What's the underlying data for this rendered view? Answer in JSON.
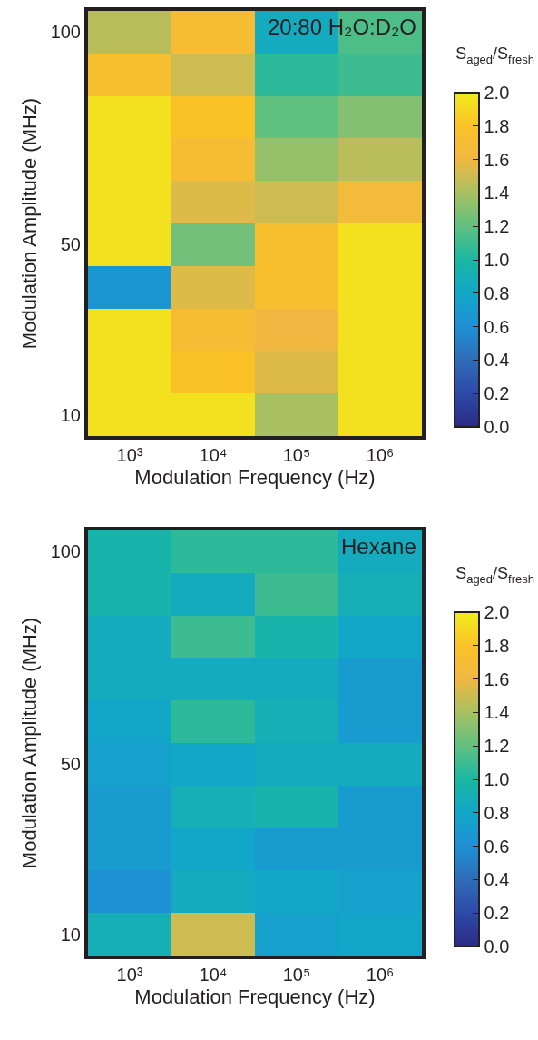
{
  "chart_data": [
    {
      "type": "heatmap",
      "title": "20:80 H₂O:D₂O",
      "xlabel": "Modulation Frequency (Hz)",
      "ylabel": "Modulation Amplitude (MHz)",
      "clabel": "S$_{aged}$/S$_{fresh}$",
      "categories": [
        "10³",
        "10⁴",
        "10⁵",
        "10⁶"
      ],
      "y_categories": [
        "100",
        null,
        null,
        null,
        null,
        "50",
        null,
        null,
        null,
        "10"
      ],
      "cells": [
        [
          1.45,
          1.7,
          0.85,
          1.15
        ],
        [
          1.75,
          1.5,
          1.05,
          1.1
        ],
        [
          1.95,
          1.8,
          1.2,
          1.3
        ],
        [
          1.95,
          1.7,
          1.35,
          1.45
        ],
        [
          1.95,
          1.55,
          1.5,
          1.65
        ],
        [
          1.95,
          1.25,
          1.75,
          1.95
        ],
        [
          0.65,
          1.55,
          1.75,
          1.95
        ],
        [
          1.95,
          1.7,
          1.6,
          1.95
        ],
        [
          1.95,
          1.8,
          1.55,
          1.95
        ],
        [
          1.95,
          1.95,
          1.4,
          1.95
        ]
      ],
      "clim": [
        0,
        2
      ],
      "cticks": [
        {
          "value": 0,
          "label": "0.0"
        },
        {
          "value": 0.2,
          "label": "0.2"
        },
        {
          "value": 0.4,
          "label": "0.4"
        },
        {
          "value": 0.6,
          "label": "0.6"
        },
        {
          "value": 0.8,
          "label": "0.8"
        },
        {
          "value": 1,
          "label": "1.0"
        },
        {
          "value": 1.2,
          "label": "1.2"
        },
        {
          "value": 1.4,
          "label": "1.4"
        },
        {
          "value": 1.6,
          "label": "1.6"
        },
        {
          "value": 1.8,
          "label": "1.8"
        },
        {
          "value": 2,
          "label": "2.0"
        }
      ]
    },
    {
      "type": "heatmap",
      "title": "Hexane",
      "xlabel": "Modulation Frequency (Hz)",
      "ylabel": "Modulation Amplitude (MHz)",
      "clabel": "S$_{aged}$/S$_{fresh}$",
      "categories": [
        "10³",
        "10⁴",
        "10⁵",
        "10⁶"
      ],
      "y_categories": [
        "100",
        null,
        null,
        null,
        null,
        "50",
        null,
        null,
        null,
        "10"
      ],
      "cells": [
        [
          0.95,
          1.05,
          1.05,
          0.85
        ],
        [
          0.95,
          0.85,
          1.1,
          0.9
        ],
        [
          0.85,
          1.1,
          0.95,
          0.8
        ],
        [
          0.85,
          0.85,
          0.85,
          0.7
        ],
        [
          0.8,
          1.05,
          0.9,
          0.7
        ],
        [
          0.75,
          0.8,
          0.85,
          0.85
        ],
        [
          0.7,
          0.9,
          0.95,
          0.7
        ],
        [
          0.7,
          0.8,
          0.7,
          0.7
        ],
        [
          0.6,
          0.85,
          0.8,
          0.75
        ],
        [
          0.9,
          1.5,
          0.75,
          0.8
        ]
      ],
      "clim": [
        0,
        2
      ],
      "cticks": [
        {
          "value": 0,
          "label": "0.0"
        },
        {
          "value": 0.2,
          "label": "0.2"
        },
        {
          "value": 0.4,
          "label": "0.4"
        },
        {
          "value": 0.6,
          "label": "0.6"
        },
        {
          "value": 0.8,
          "label": "0.8"
        },
        {
          "value": 1,
          "label": "1.0"
        },
        {
          "value": 1.2,
          "label": "1.2"
        },
        {
          "value": 1.4,
          "label": "1.4"
        },
        {
          "value": 1.6,
          "label": "1.6"
        },
        {
          "value": 1.8,
          "label": "1.8"
        },
        {
          "value": 2,
          "label": "2.0"
        }
      ]
    }
  ]
}
